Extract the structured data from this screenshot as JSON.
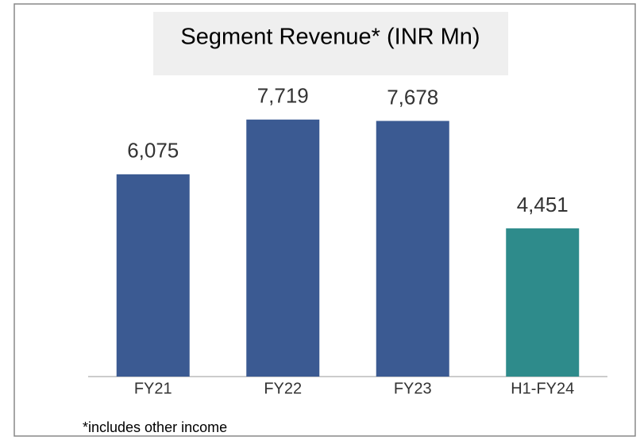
{
  "chart_data": {
    "type": "bar",
    "title": "Segment Revenue* (INR Mn)",
    "categories": [
      "FY21",
      "FY22",
      "FY23",
      "H1-FY24"
    ],
    "values": [
      6075,
      7719,
      7678,
      4451
    ],
    "value_labels": [
      "6,075",
      "7,719",
      "7,678",
      "4,451"
    ],
    "colors": [
      "#3b5a92",
      "#3b5a92",
      "#3b5a92",
      "#2e8b8b"
    ],
    "ylim": [
      0,
      9000
    ],
    "footnote": "*includes other income"
  }
}
